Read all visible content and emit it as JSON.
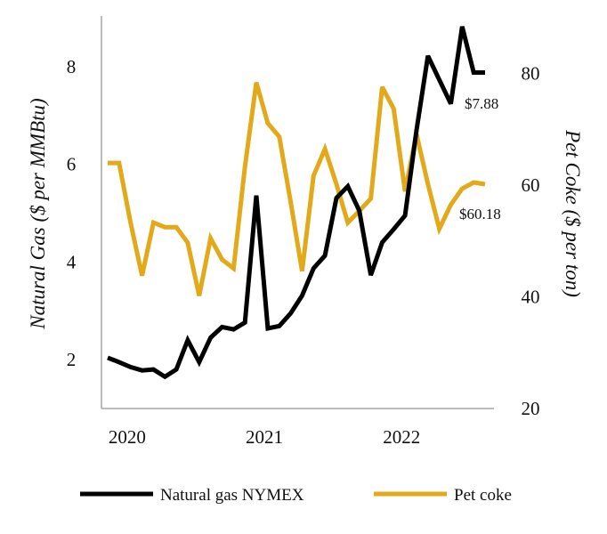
{
  "chart_data": {
    "type": "line",
    "title": "",
    "x": [
      "2020-01",
      "2020-02",
      "2020-03",
      "2020-04",
      "2020-05",
      "2020-06",
      "2020-07",
      "2020-08",
      "2020-09",
      "2020-10",
      "2020-11",
      "2020-12",
      "2021-01",
      "2021-02",
      "2021-03",
      "2021-04",
      "2021-05",
      "2021-06",
      "2021-07",
      "2021-08",
      "2021-09",
      "2021-10",
      "2021-11",
      "2021-12",
      "2022-01",
      "2022-02",
      "2022-03",
      "2022-04",
      "2022-05",
      "2022-06",
      "2022-07",
      "2022-08",
      "2022-09",
      "2022-10"
    ],
    "x_ticks": [
      "2020",
      "2021",
      "2022"
    ],
    "ylabel_left": "Natural Gas  ($ per MMBtu)",
    "ylabel_right": "Pet Coke ($ per ton)",
    "ylim_left": [
      1,
      9
    ],
    "ylim_right": [
      20,
      90
    ],
    "yticks_left": [
      "2",
      "4",
      "6",
      "8"
    ],
    "yticks_right": [
      "20",
      "40",
      "60",
      "80"
    ],
    "grid": false,
    "legend_placement": "bottom",
    "series": [
      {
        "name": "Natural gas NYMEX",
        "axis": "left",
        "color": "#000000",
        "values": [
          2.04,
          1.95,
          1.85,
          1.78,
          1.8,
          1.65,
          1.8,
          2.4,
          1.95,
          2.45,
          2.67,
          2.62,
          2.76,
          5.36,
          2.64,
          2.69,
          2.95,
          3.31,
          3.87,
          4.13,
          5.31,
          5.55,
          5.05,
          3.73,
          4.4,
          4.67,
          4.95,
          6.69,
          8.22,
          7.73,
          7.24,
          8.82,
          7.88,
          7.88
        ],
        "end_label": "$7.88"
      },
      {
        "name": "Pet coke",
        "axis": "right",
        "color": "#E2A91B",
        "values": [
          64.0,
          64.0,
          53.3,
          43.8,
          53.3,
          52.5,
          52.5,
          49.7,
          40.2,
          50.5,
          46.7,
          45.1,
          63.3,
          78.4,
          71.1,
          68.7,
          57.0,
          44.6,
          61.7,
          66.5,
          60.2,
          53.3,
          55.4,
          57.6,
          77.6,
          73.7,
          58.9,
          69.2,
          60.2,
          52.2,
          56.5,
          59.4,
          60.5,
          60.18
        ],
        "end_label": "$60.18"
      }
    ]
  }
}
